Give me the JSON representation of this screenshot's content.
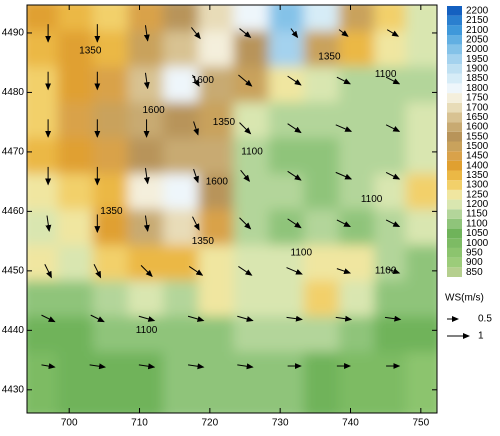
{
  "chart_data": {
    "type": "contour",
    "xlim": [
      694,
      752.3
    ],
    "ylim": [
      4426.1,
      4494.7
    ],
    "xticks": [
      700,
      710,
      720,
      730,
      740,
      750
    ],
    "yticks": [
      4430,
      4440,
      4450,
      4460,
      4470,
      4480,
      4490
    ],
    "levels": [
      850,
      900,
      950,
      1000,
      1050,
      1100,
      1150,
      1200,
      1250,
      1300,
      1350,
      1400,
      1450,
      1500,
      1550,
      1600,
      1650,
      1700,
      1750,
      1800,
      1850,
      1900,
      1950,
      2000,
      2050,
      2100,
      2150,
      2200
    ],
    "colors": [
      "#b5cf8e",
      "#9ccc7a",
      "#8cc46e",
      "#7dbb64",
      "#6fb35a",
      "#8fc47a",
      "#b3d59a",
      "#d9e6b0",
      "#f0e6a0",
      "#f2d06a",
      "#ebb845",
      "#e0a030",
      "#d9a24a",
      "#c9a25c",
      "#b8945a",
      "#c8aa72",
      "#d8c292",
      "#e8dcb8",
      "#f4efdc",
      "#eef6fb",
      "#d6ecf7",
      "#bfe0f2",
      "#a4d2ee",
      "#84c2e8",
      "#62afe2",
      "#3f98da",
      "#2a7fcf",
      "#1460c0"
    ],
    "field": {
      "x": [
        697,
        702,
        707,
        712,
        717,
        722,
        727,
        732,
        737,
        742,
        747,
        751
      ],
      "y": [
        4492,
        4486,
        4480,
        4474,
        4468,
        4462,
        4456,
        4450,
        4444,
        4438,
        4432
      ],
      "z": [
        [
          1400,
          1350,
          1300,
          1450,
          1550,
          1700,
          1800,
          2000,
          1850,
          1500,
          1300,
          1200
        ],
        [
          1350,
          1400,
          1350,
          1500,
          1650,
          1750,
          1550,
          1950,
          1500,
          1350,
          1250,
          1200
        ],
        [
          1300,
          1400,
          1450,
          1650,
          1800,
          1600,
          1500,
          1250,
          1200,
          1150,
          1150,
          1150
        ],
        [
          1300,
          1450,
          1500,
          1600,
          1550,
          1500,
          1200,
          1150,
          1150,
          1150,
          1150,
          1200
        ],
        [
          1350,
          1400,
          1450,
          1550,
          1600,
          1600,
          1150,
          1100,
          1100,
          1150,
          1150,
          1200
        ],
        [
          1250,
          1300,
          1350,
          1750,
          1800,
          1550,
          1150,
          1150,
          1100,
          1150,
          1200,
          1300
        ],
        [
          1200,
          1250,
          1400,
          1600,
          1700,
          1450,
          1150,
          1100,
          1150,
          1100,
          1150,
          1200
        ],
        [
          1250,
          1200,
          1300,
          1350,
          1350,
          1250,
          1200,
          1200,
          1250,
          1250,
          1150,
          1100
        ],
        [
          1100,
          1100,
          1150,
          1200,
          1150,
          1250,
          1200,
          1200,
          1300,
          1200,
          1100,
          1100
        ],
        [
          1050,
          1050,
          1100,
          1100,
          1100,
          1100,
          1150,
          1150,
          1150,
          1100,
          1050,
          1050
        ],
        [
          1000,
          1050,
          1050,
          1050,
          1100,
          1100,
          1100,
          1100,
          1050,
          1000,
          1000,
          950
        ]
      ]
    },
    "wind": {
      "x": [
        697,
        704,
        711,
        718,
        725,
        732,
        739,
        746
      ],
      "y": [
        4490,
        4482,
        4474,
        4466,
        4458,
        4450,
        4442,
        4434
      ],
      "u": [
        [
          0,
          0,
          0.1,
          0.4,
          0.5,
          0.3,
          0.4,
          0.5
        ],
        [
          0,
          0,
          0.1,
          0.3,
          0.6,
          0.6,
          0.6,
          0.6
        ],
        [
          0,
          0,
          0,
          0.2,
          0.5,
          0.6,
          0.7,
          0.6
        ],
        [
          0,
          0,
          0.1,
          0.2,
          0.4,
          0.6,
          0.7,
          0.6
        ],
        [
          0.1,
          0,
          0.1,
          0.3,
          0.5,
          0.6,
          0.6,
          0.6
        ],
        [
          0.3,
          0.3,
          0.5,
          0.6,
          0.6,
          0.7,
          0.6,
          0.6
        ],
        [
          0.6,
          0.6,
          0.7,
          0.7,
          0.7,
          0.7,
          0.7,
          0.7
        ],
        [
          0.6,
          0.7,
          0.7,
          0.7,
          0.7,
          0.6,
          0.6,
          0.6
        ]
      ],
      "v": [
        [
          -0.8,
          -0.8,
          -0.7,
          -0.5,
          -0.4,
          -0.4,
          -0.3,
          -0.3
        ],
        [
          -0.8,
          -0.8,
          -0.7,
          -0.5,
          -0.5,
          -0.4,
          -0.3,
          -0.3
        ],
        [
          -0.8,
          -0.8,
          -0.8,
          -0.6,
          -0.5,
          -0.4,
          -0.3,
          -0.3
        ],
        [
          -0.8,
          -0.8,
          -0.7,
          -0.6,
          -0.5,
          -0.4,
          -0.3,
          -0.3
        ],
        [
          -0.7,
          -0.8,
          -0.7,
          -0.6,
          -0.5,
          -0.4,
          -0.3,
          -0.3
        ],
        [
          -0.6,
          -0.6,
          -0.5,
          -0.4,
          -0.4,
          -0.3,
          -0.2,
          -0.2
        ],
        [
          -0.3,
          -0.3,
          -0.2,
          -0.2,
          -0.2,
          -0.1,
          -0.1,
          -0.1
        ],
        [
          -0.1,
          -0.1,
          -0.1,
          -0.1,
          -0.1,
          0,
          0,
          0
        ]
      ]
    },
    "key": {
      "title": "WS(m/s)",
      "values": [
        0.5,
        1
      ]
    },
    "annotations": [
      {
        "text": "1350",
        "x": 703,
        "y": 4487
      },
      {
        "text": "1600",
        "x": 719,
        "y": 4482
      },
      {
        "text": "1600",
        "x": 712,
        "y": 4477
      },
      {
        "text": "1350",
        "x": 722,
        "y": 4475
      },
      {
        "text": "1350",
        "x": 737,
        "y": 4486
      },
      {
        "text": "1100",
        "x": 745,
        "y": 4483
      },
      {
        "text": "1100",
        "x": 726,
        "y": 4470
      },
      {
        "text": "1600",
        "x": 721,
        "y": 4465
      },
      {
        "text": "1350",
        "x": 706,
        "y": 4460
      },
      {
        "text": "1350",
        "x": 719,
        "y": 4455
      },
      {
        "text": "1100",
        "x": 743,
        "y": 4462
      },
      {
        "text": "1100",
        "x": 733,
        "y": 4453
      },
      {
        "text": "1100",
        "x": 745,
        "y": 4450
      },
      {
        "text": "1100",
        "x": 711,
        "y": 4440
      }
    ]
  }
}
